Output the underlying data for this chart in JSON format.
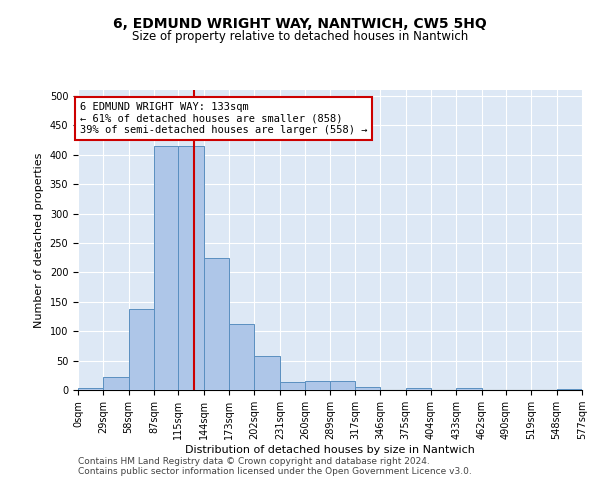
{
  "title": "6, EDMUND WRIGHT WAY, NANTWICH, CW5 5HQ",
  "subtitle": "Size of property relative to detached houses in Nantwich",
  "xlabel": "Distribution of detached houses by size in Nantwich",
  "ylabel": "Number of detached properties",
  "bin_edges": [
    0,
    29,
    58,
    87,
    115,
    144,
    173,
    202,
    231,
    260,
    289,
    317,
    346,
    375,
    404,
    433,
    462,
    490,
    519,
    548,
    577
  ],
  "bin_labels": [
    "0sqm",
    "29sqm",
    "58sqm",
    "87sqm",
    "115sqm",
    "144sqm",
    "173sqm",
    "202sqm",
    "231sqm",
    "260sqm",
    "289sqm",
    "317sqm",
    "346sqm",
    "375sqm",
    "404sqm",
    "433sqm",
    "462sqm",
    "490sqm",
    "519sqm",
    "548sqm",
    "577sqm"
  ],
  "bar_heights": [
    3,
    22,
    137,
    415,
    415,
    225,
    113,
    57,
    13,
    15,
    15,
    5,
    0,
    3,
    0,
    3,
    0,
    0,
    0,
    2
  ],
  "bar_color": "#aec6e8",
  "bar_edge_color": "#5a8fc0",
  "property_size": 133,
  "vline_color": "#cc0000",
  "annotation_line1": "6 EDMUND WRIGHT WAY: 133sqm",
  "annotation_line2": "← 61% of detached houses are smaller (858)",
  "annotation_line3": "39% of semi-detached houses are larger (558) →",
  "annotation_box_color": "#ffffff",
  "annotation_box_edge_color": "#cc0000",
  "ylim": [
    0,
    510
  ],
  "yticks": [
    0,
    50,
    100,
    150,
    200,
    250,
    300,
    350,
    400,
    450,
    500
  ],
  "background_color": "#dde8f5",
  "footer_line1": "Contains HM Land Registry data © Crown copyright and database right 2024.",
  "footer_line2": "Contains public sector information licensed under the Open Government Licence v3.0.",
  "title_fontsize": 10,
  "subtitle_fontsize": 8.5,
  "xlabel_fontsize": 8,
  "ylabel_fontsize": 8,
  "tick_fontsize": 7,
  "annotation_fontsize": 7.5,
  "footer_fontsize": 6.5
}
